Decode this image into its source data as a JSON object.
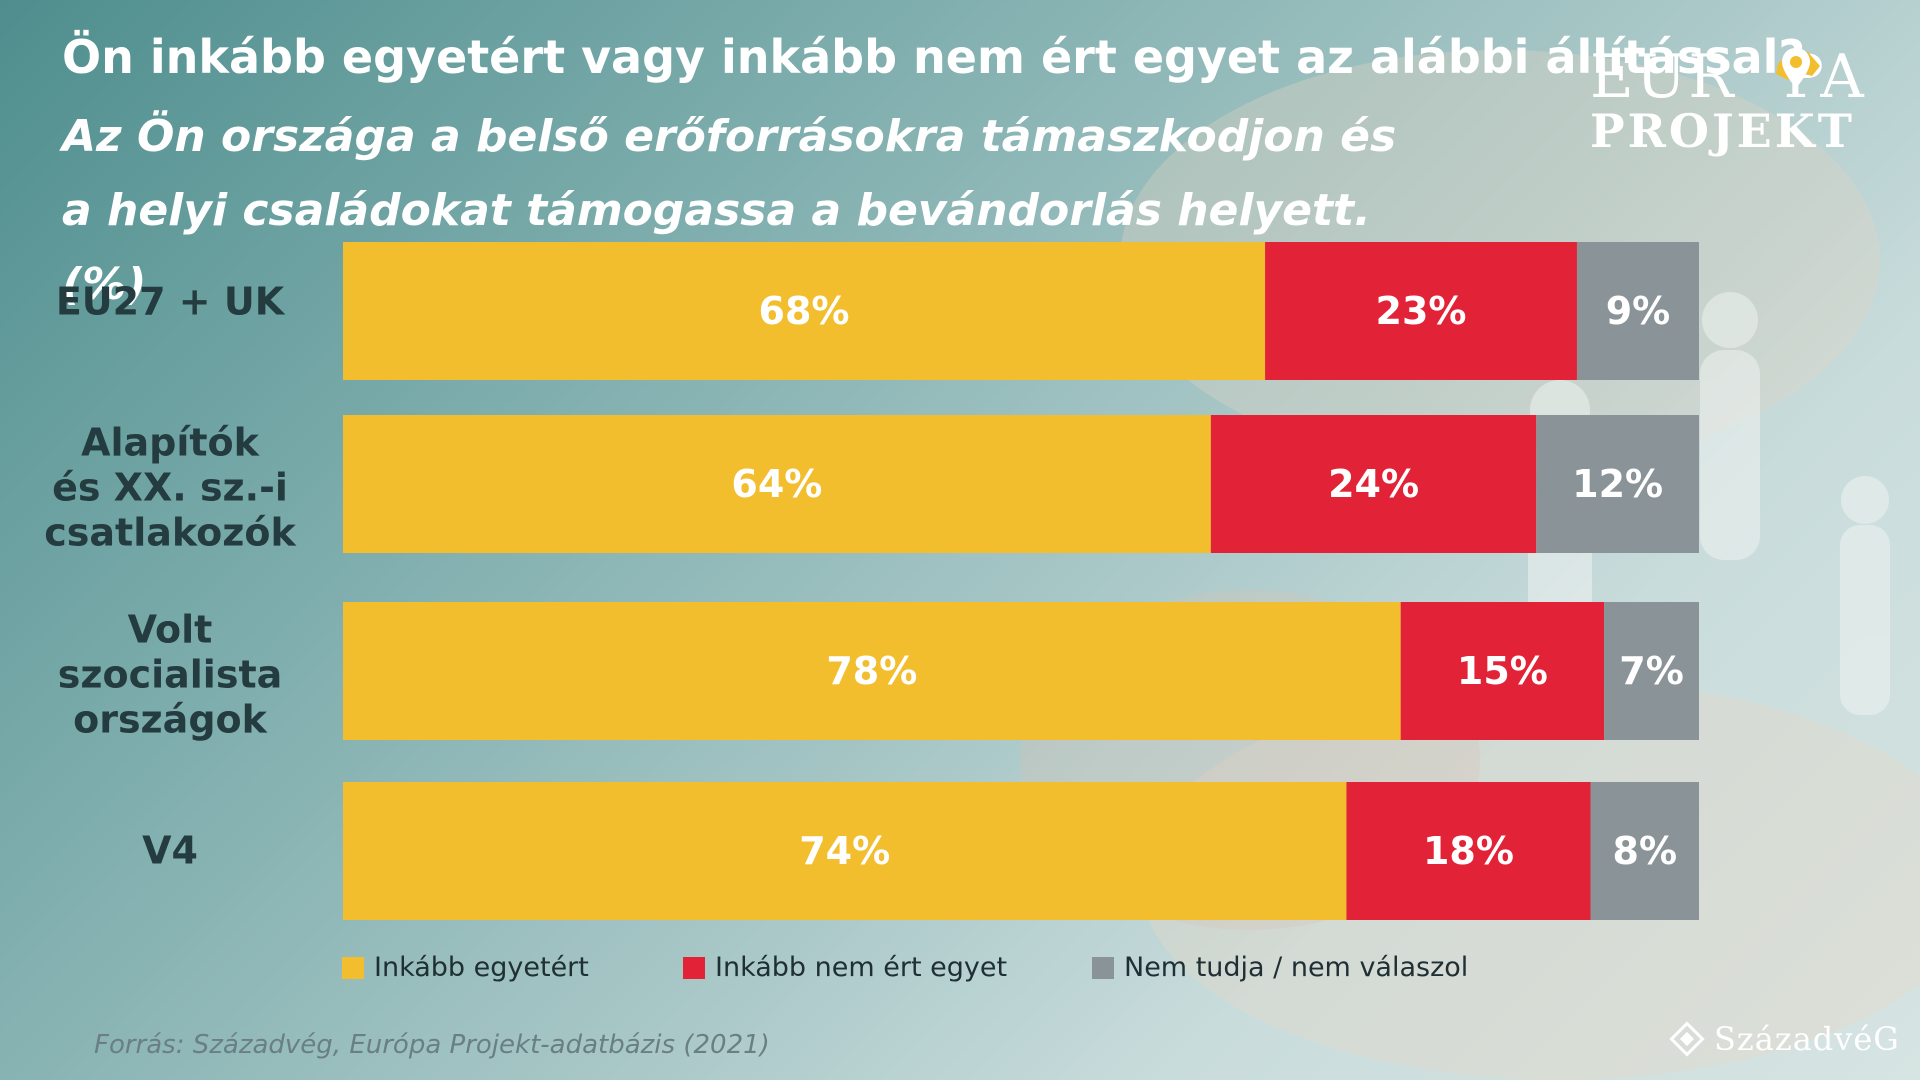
{
  "header": {
    "title": "Ön inkább egyetért vagy inkább nem ért egyet az alábbi állítással?",
    "subtitle": "Az Ön országa a belső erőforrásokra támaszkodjon és a helyi családokat támogassa a bevándorlás helyett. (%)"
  },
  "logo": {
    "line1_left": "EUR",
    "line1_right": "PA",
    "line2": "PROJEKT"
  },
  "colors": {
    "agree": "#f2be2e",
    "disagree": "#e22236",
    "dont_know": "#8a9398"
  },
  "chart_data": {
    "type": "bar",
    "orientation": "horizontal",
    "stacked": true,
    "categories": [
      "EU27 + UK",
      "Alapítók és XX. sz.-i csatlakozók",
      "Volt szocialista országok",
      "V4"
    ],
    "category_lines": [
      [
        "EU27 + UK"
      ],
      [
        "Alapítók",
        "és XX. sz.-i",
        "csatlakozók"
      ],
      [
        "Volt szocialista",
        "országok"
      ],
      [
        "V4"
      ]
    ],
    "series": [
      {
        "name": "Inkább egyetért",
        "values": [
          68,
          64,
          78,
          74
        ],
        "labels": [
          "68%",
          "64%",
          "78%",
          "74%"
        ],
        "color": "#f2be2e"
      },
      {
        "name": "Inkább nem ért egyet",
        "values": [
          23,
          24,
          15,
          18
        ],
        "labels": [
          "23%",
          "24%",
          "15%",
          "18%"
        ],
        "color": "#e22236"
      },
      {
        "name": "Nem tudja / nem válaszol",
        "values": [
          9,
          12,
          7,
          8
        ],
        "labels": [
          "9%",
          "12%",
          "7%",
          "8%"
        ],
        "color": "#8a9398"
      }
    ],
    "xlim": [
      0,
      100
    ],
    "grid": false,
    "legend_position": "bottom"
  },
  "source": "Forrás: Századvég, Európa Projekt-adatbázis (2021)",
  "brand": "SzázadvéG"
}
